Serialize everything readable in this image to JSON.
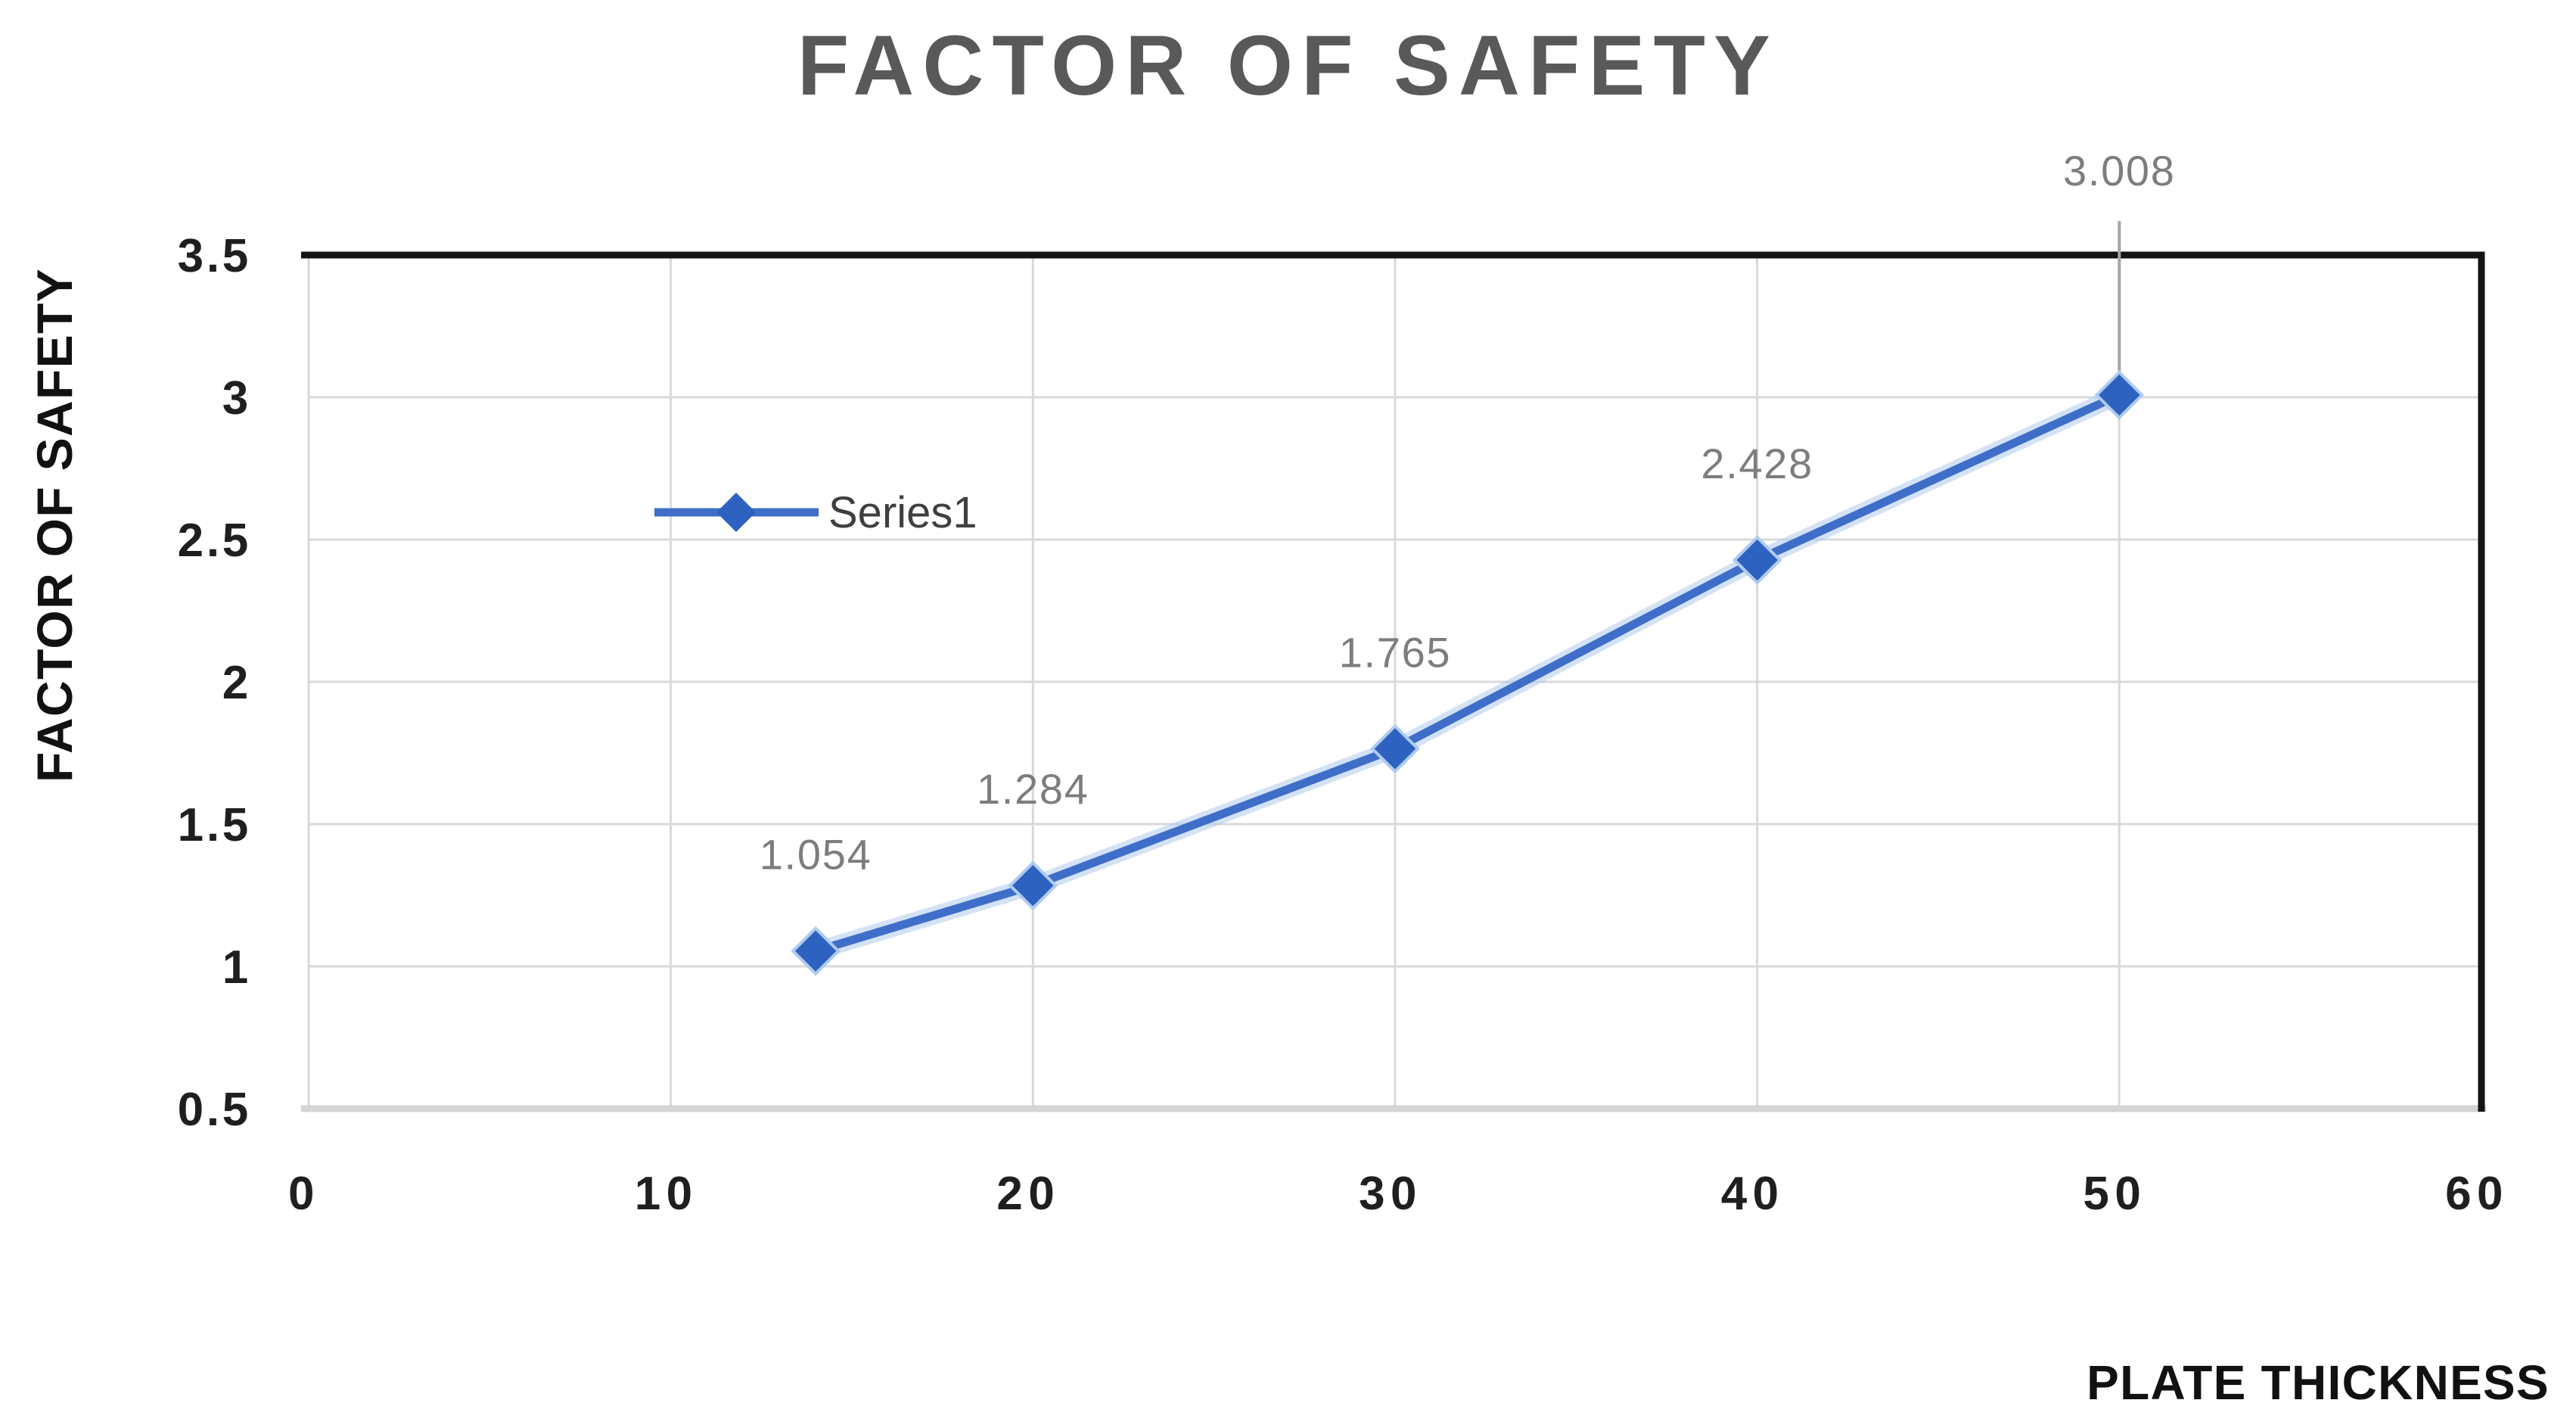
{
  "chart_data": {
    "type": "line",
    "title": "FACTOR OF SAFETY",
    "xlabel": "PLATE THICKNESS",
    "ylabel": "FACTOR OF SAFETY",
    "xlim": [
      0,
      60
    ],
    "ylim": [
      0.5,
      3.5
    ],
    "grid": true,
    "xticks": [
      {
        "value": 0,
        "label": "0"
      },
      {
        "value": 10,
        "label": "10"
      },
      {
        "value": 20,
        "label": "20"
      },
      {
        "value": 30,
        "label": "30"
      },
      {
        "value": 40,
        "label": "40"
      },
      {
        "value": 50,
        "label": "50"
      },
      {
        "value": 60,
        "label": "60"
      }
    ],
    "yticks": [
      {
        "value": 0.5,
        "label": "0.5"
      },
      {
        "value": 1,
        "label": "1"
      },
      {
        "value": 1.5,
        "label": "1.5"
      },
      {
        "value": 2,
        "label": "2"
      },
      {
        "value": 2.5,
        "label": "2.5"
      },
      {
        "value": 3,
        "label": "3"
      },
      {
        "value": 3.5,
        "label": "3.5"
      }
    ],
    "series": [
      {
        "name": "Series1",
        "marker": "diamond",
        "x": [
          14,
          20,
          30,
          40,
          50
        ],
        "y": [
          1.054,
          1.284,
          1.765,
          2.428,
          3.008
        ],
        "point_labels": [
          "1.054",
          "1.284",
          "1.765",
          "2.428",
          "3.008"
        ]
      }
    ],
    "legend": {
      "label": "Series1",
      "position": "inside-upper-left"
    },
    "last_label_leader_line": true,
    "colors": {
      "title": "#595959",
      "axis_title": "#111111",
      "tick_label": "#1f1f1f",
      "data_label": "#7d7d7d",
      "legend_text": "#3f3f3f",
      "gridline": "#d9d9d9",
      "bottom_axis": "#d4d4d4",
      "border": "#141414",
      "series_line": "#3e6ec8",
      "series_line_halo": "#aecbef",
      "marker_fill": "#2d62c0",
      "leader_line": "#a6a6a6"
    }
  }
}
